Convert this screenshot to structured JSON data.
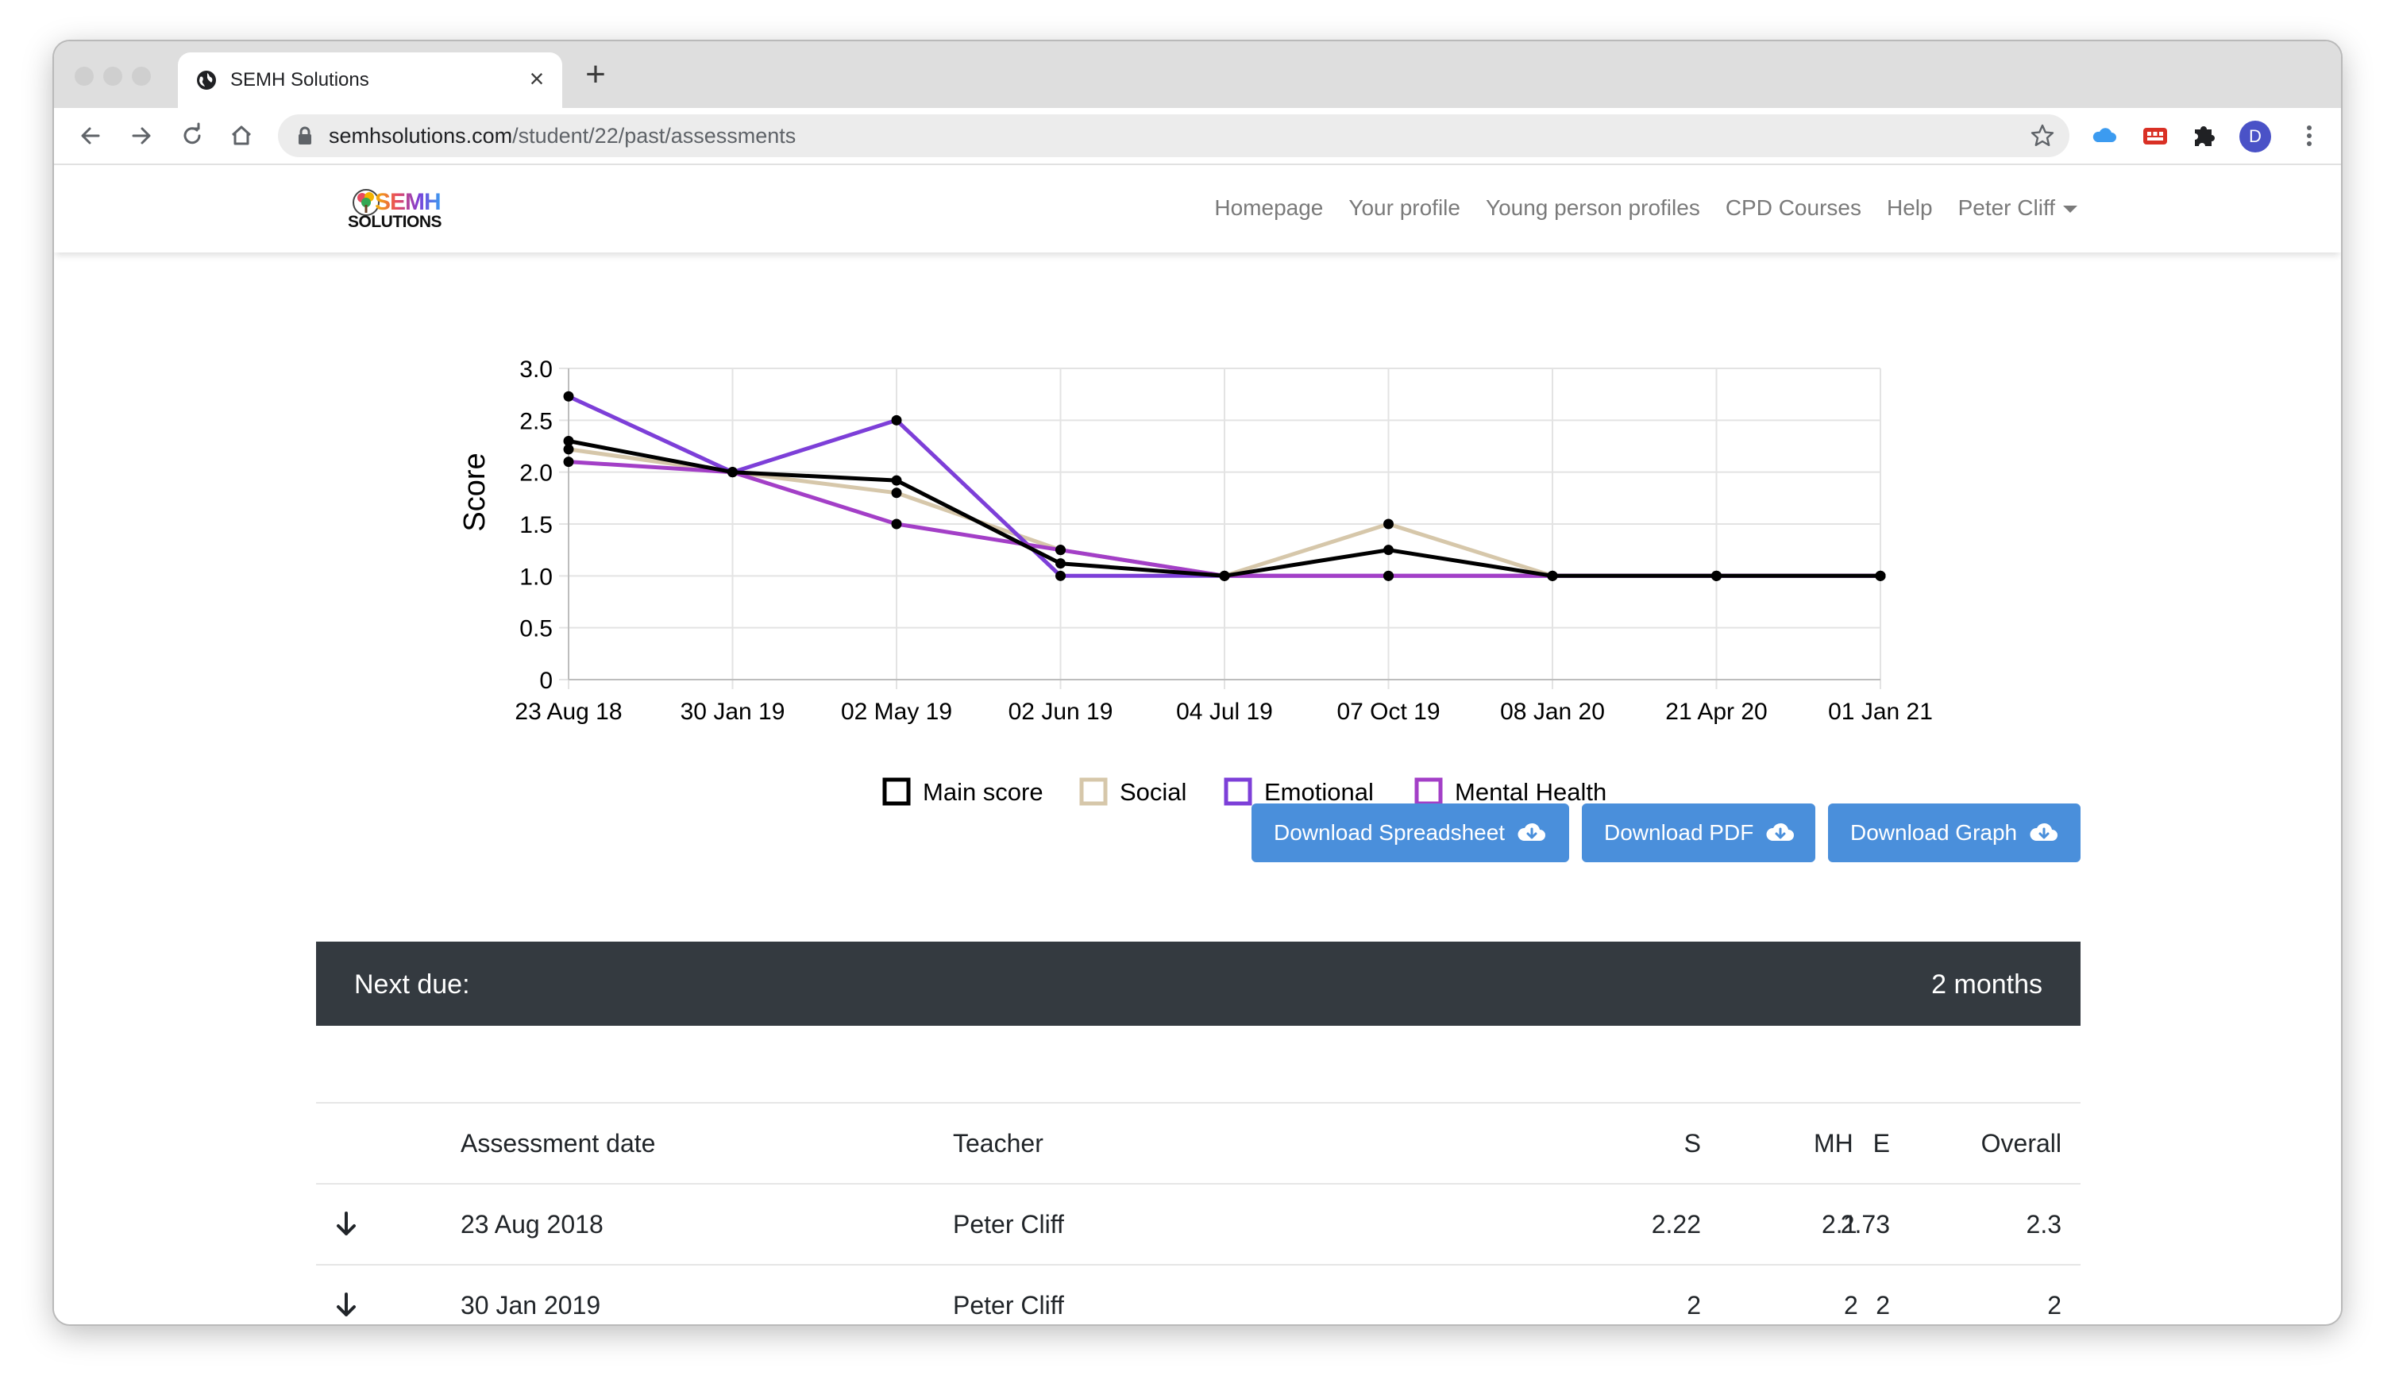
{
  "browser": {
    "tab_title": "SEMH Solutions",
    "url_host": "semhsolutions.com",
    "url_path": "/student/22/past/assessments",
    "avatar_initial": "D",
    "icons": {
      "tab": "globe-icon",
      "close": "close-icon",
      "new_tab": "plus-icon",
      "back": "back-arrow-icon",
      "forward": "forward-arrow-icon",
      "reload": "reload-icon",
      "home": "home-icon",
      "lock": "lock-icon",
      "bookmark": "star-icon",
      "extensions": [
        "cloud-icon",
        "red-extension-icon",
        "puzzle-icon"
      ],
      "menu": "kebab-menu-icon"
    }
  },
  "site": {
    "logo_top": "SEMH",
    "logo_bottom": "SOLUTIONS",
    "nav": [
      "Homepage",
      "Your profile",
      "Young person profiles",
      "CPD Courses",
      "Help",
      "Peter Cliff"
    ]
  },
  "chart_data": {
    "type": "line",
    "ylabel": "Score",
    "xlabel": "",
    "ylim": [
      0,
      3
    ],
    "yticks": [
      "0",
      "0.5",
      "1.0",
      "1.5",
      "2.0",
      "2.5",
      "3.0"
    ],
    "ytick_values": [
      0,
      0.5,
      1,
      1.5,
      2,
      2.5,
      3
    ],
    "categories": [
      "23 Aug 18",
      "30 Jan 19",
      "02 May 19",
      "02 Jun 19",
      "04 Jul 19",
      "07 Oct 19",
      "08 Jan 20",
      "21 Apr 20",
      "01 Jan 21"
    ],
    "grid": true,
    "legend_position": "bottom",
    "series": [
      {
        "name": "Main score",
        "color": "#000000",
        "values": [
          2.3,
          2.0,
          1.92,
          1.12,
          1.0,
          1.25,
          1.0,
          1.0,
          1.0
        ]
      },
      {
        "name": "Social",
        "color": "#d6c7aa",
        "values": [
          2.22,
          2.0,
          1.8,
          1.25,
          1.0,
          1.5,
          1.0,
          1.0,
          1.0
        ]
      },
      {
        "name": "Emotional",
        "color": "#7d3fd8",
        "values": [
          2.73,
          2.0,
          2.5,
          1.0,
          1.0,
          1.0,
          1.0,
          1.0,
          1.0
        ]
      },
      {
        "name": "Mental Health",
        "color": "#a33fc7",
        "values": [
          2.1,
          2.0,
          1.5,
          1.25,
          1.0,
          1.0,
          1.0,
          1.0,
          1.0
        ]
      }
    ],
    "draw_order": [
      1,
      2,
      3,
      0
    ]
  },
  "actions": {
    "download_spreadsheet": "Download Spreadsheet",
    "download_pdf": "Download PDF",
    "download_graph": "Download Graph",
    "icon": "cloud-download-icon",
    "button_color": "#4a8fdb"
  },
  "next_due": {
    "label": "Next due:",
    "value": "2 months"
  },
  "table": {
    "headers": {
      "date": "Assessment date",
      "teacher": "Teacher",
      "s": "S",
      "e": "E",
      "mh": "MH",
      "overall": "Overall"
    },
    "rows": [
      {
        "date": "23 Aug 2018",
        "teacher": "Peter Cliff",
        "s": "2.22",
        "e": "2.73",
        "mh": "2.1",
        "overall": "2.3",
        "icon": "arrow-down-icon"
      },
      {
        "date": "30 Jan 2019",
        "teacher": "Peter Cliff",
        "s": "2",
        "e": "2",
        "mh": "2",
        "overall": "2",
        "icon": "arrow-down-icon"
      }
    ]
  }
}
